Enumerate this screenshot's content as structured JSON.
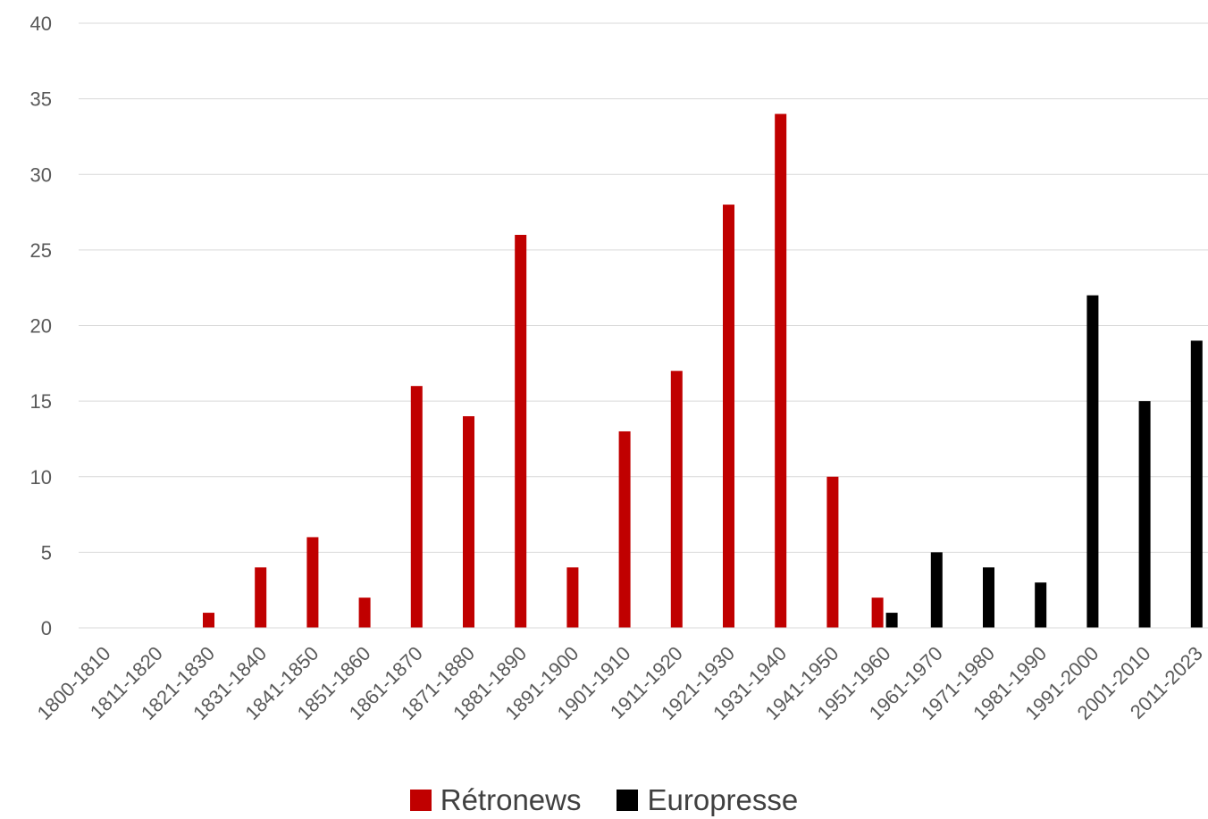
{
  "chart_data": {
    "type": "bar",
    "categories": [
      "1800-1810",
      "1811-1820",
      "1821-1830",
      "1831-1840",
      "1841-1850",
      "1851-1860",
      "1861-1870",
      "1871-1880",
      "1881-1890",
      "1891-1900",
      "1901-1910",
      "1911-1920",
      "1921-1930",
      "1931-1940",
      "1941-1950",
      "1951-1960",
      "1961-1970",
      "1971-1980",
      "1981-1990",
      "1991-2000",
      "2001-2010",
      "2011-2023"
    ],
    "series": [
      {
        "name": "Rétronews",
        "color": "#C00000",
        "values": [
          0,
          0,
          1,
          4,
          6,
          2,
          16,
          14,
          26,
          4,
          13,
          17,
          28,
          34,
          10,
          2,
          0,
          0,
          0,
          0,
          0,
          0
        ]
      },
      {
        "name": "Europresse",
        "color": "#000000",
        "values": [
          0,
          0,
          0,
          0,
          0,
          0,
          0,
          0,
          0,
          0,
          0,
          0,
          0,
          0,
          0,
          1,
          5,
          4,
          3,
          22,
          15,
          19
        ]
      }
    ],
    "yticks": [
      "0",
      "5",
      "10",
      "15",
      "20",
      "25",
      "30",
      "35",
      "40"
    ],
    "ylim": [
      0,
      40
    ],
    "grid": true,
    "legend_position": "bottom",
    "title": "",
    "xlabel": "",
    "ylabel": ""
  }
}
